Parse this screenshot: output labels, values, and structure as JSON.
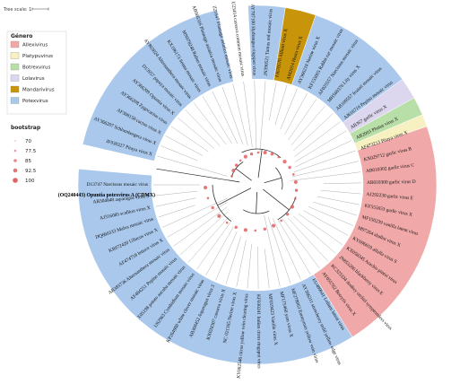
{
  "scale": {
    "label": "Tree scale: 1"
  },
  "legend_genus": {
    "title": "Género",
    "items": [
      {
        "label": "Allexivirus",
        "color": "#f0a8a8"
      },
      {
        "label": "Platypuvirus",
        "color": "#f7f0c0"
      },
      {
        "label": "Botrexvirus",
        "color": "#b9dfa8"
      },
      {
        "label": "Lolavirus",
        "color": "#dcd6ee"
      },
      {
        "label": "Mandarivirus",
        "color": "#c8940a"
      },
      {
        "label": "Potexvirus",
        "color": "#a9c8ec"
      }
    ]
  },
  "legend_bootstrap": {
    "title": "bootstrap",
    "items": [
      "70",
      "77.5",
      "85",
      "92.5",
      "100"
    ],
    "color": "#e06060"
  },
  "highlight_label": "(OQ240443) Opuntia potexvirus A (CDMX)",
  "leaves": [
    "JF930327 Pitaya virus X",
    "AY366207 Schlumbergera virus X",
    "AF308158 cactus virus X",
    "AY366208 Zygocactus virus",
    "AY366209 Opuntia virus X",
    "D13957 papaya mosaic virus",
    "AY863024 Alternanthera mosaic virus",
    "KX196173 Senna mosaic virus",
    "MN978248 Rubus mosaic virus",
    "AB066316 Plantago asiatica mosaic virus",
    "Z21647 Plantago asiatica mosaic virus",
    "U23414 cassava common mosaic virus",
    "AY707100 Hydrangea ringspot virus",
    "JN390521 Tamus red mosaic virus",
    "FJ670570 Allium virus X",
    "AM2014 Hosta virus X",
    "AY366210 Nerine virus X",
    "KF155005 Rabbit ear mosaic virus",
    "AF025557 Narcissus mosaic virus",
    "MH560376 Lily virus X",
    "AB109557 foxtail mosaic virus",
    "AJ616719 Pepino mosaic virus",
    "AB367 garlic virus X",
    "AB2003 Phaius virus X",
    "AF473213 Pitaya virus X",
    "KX029712 garlic virus B",
    "AB010302 garlic virus C",
    "AB010300 garlic virus D",
    "AJ292230 garlic virus E",
    "KF555653 garlic virus X",
    "MF150239 vanilla latent virus",
    "M97264 shallot virus X",
    "KY696659 alfalfa virus S",
    "KX058345 Arachis pintoi virus",
    "JN853286 blackberry virus E",
    "KC325334 donkey orchid symptomless virus",
    "AY055762 Botrytis virus X",
    "EU489641 Lolium latent virus",
    "AY366211 strawberry mild yellow edge virus",
    "MF278063 Euonymus yellow vein virus",
    "MF175460 yam virus X",
    "MF019423 Vanilla virus X",
    "KF030241 Indian citrus ringspot virus",
    "KY002546 citrus yellow vein clearing virus",
    "NC 021165 Nerine virus X",
    "KX028307 cassava virus X",
    "AB368452 Asparagus virus 3",
    "KP264980 white clover mosaic virus",
    "U62963 Cymbidium mosaic virus",
    "X05198 potato aucuba mosaic virus",
    "AF484251 Pepino mosaic virus",
    "AB383736 Alternanthera mosaic virus",
    "AF474759 lettuce virus X",
    "KR072420 Ullucus virus X",
    "DQ660333 Malva mosaic virus",
    "AJ316085 scallion virus X",
    "AB304848 asparagus virus 3",
    "D13747 Narcissus mosaic virus"
  ]
}
